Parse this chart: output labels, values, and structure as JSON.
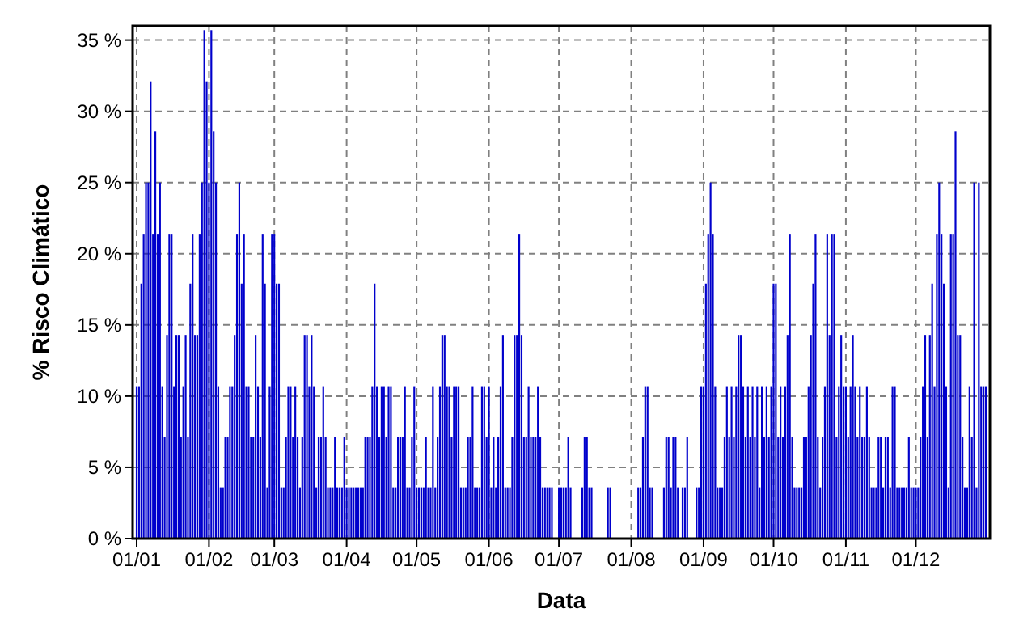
{
  "chart_data": {
    "type": "bar",
    "xlabel": "Data",
    "ylabel": "% Risco Climático",
    "color": "#0000cc",
    "grid": true,
    "xlim": [
      "--01-01",
      "--12-31"
    ],
    "xticks": [
      {
        "value": "--01-01",
        "label": "01/01"
      },
      {
        "value": "--02-01",
        "label": "01/02"
      },
      {
        "value": "--03-01",
        "label": "01/03"
      },
      {
        "value": "--04-01",
        "label": "01/04"
      },
      {
        "value": "--05-01",
        "label": "01/05"
      },
      {
        "value": "--06-01",
        "label": "01/06"
      },
      {
        "value": "--07-01",
        "label": "01/07"
      },
      {
        "value": "--08-01",
        "label": "01/08"
      },
      {
        "value": "--09-01",
        "label": "01/09"
      },
      {
        "value": "--10-01",
        "label": "01/10"
      },
      {
        "value": "--11-01",
        "label": "01/11"
      },
      {
        "value": "--12-01",
        "label": "01/12"
      }
    ],
    "ylim": [
      0,
      36
    ],
    "yticks": [
      {
        "value": 0,
        "label": "0 %"
      },
      {
        "value": 5,
        "label": "5 %"
      },
      {
        "value": 10,
        "label": "10 %"
      },
      {
        "value": 15,
        "label": "15 %"
      },
      {
        "value": 20,
        "label": "20 %"
      },
      {
        "value": 25,
        "label": "25 %"
      },
      {
        "value": 30,
        "label": "30 %"
      },
      {
        "value": 35,
        "label": "35 %"
      }
    ],
    "x": [
      "--01-01",
      "--01-02",
      "--01-03",
      "--01-04",
      "--01-05",
      "--01-06",
      "--01-07",
      "--01-08",
      "--01-09",
      "--01-10",
      "--01-11",
      "--01-12",
      "--01-13",
      "--01-14",
      "--01-15",
      "--01-16",
      "--01-17",
      "--01-18",
      "--01-19",
      "--01-20",
      "--01-21",
      "--01-22",
      "--01-23",
      "--01-24",
      "--01-25",
      "--01-26",
      "--01-27",
      "--01-28",
      "--01-29",
      "--01-30",
      "--01-31",
      "--02-01",
      "--02-02",
      "--02-03",
      "--02-04",
      "--02-05",
      "--02-06",
      "--02-07",
      "--02-08",
      "--02-09",
      "--02-10",
      "--02-11",
      "--02-12",
      "--02-13",
      "--02-14",
      "--02-15",
      "--02-16",
      "--02-17",
      "--02-18",
      "--02-19",
      "--02-20",
      "--02-21",
      "--02-22",
      "--02-23",
      "--02-24",
      "--02-25",
      "--02-26",
      "--02-27",
      "--02-28",
      "--03-01",
      "--03-02",
      "--03-03",
      "--03-04",
      "--03-05",
      "--03-06",
      "--03-07",
      "--03-08",
      "--03-09",
      "--03-10",
      "--03-11",
      "--03-12",
      "--03-13",
      "--03-14",
      "--03-15",
      "--03-16",
      "--03-17",
      "--03-18",
      "--03-19",
      "--03-20",
      "--03-21",
      "--03-22",
      "--03-23",
      "--03-24",
      "--03-25",
      "--03-26",
      "--03-27",
      "--03-28",
      "--03-29",
      "--03-30",
      "--03-31",
      "--04-01",
      "--04-02",
      "--04-03",
      "--04-04",
      "--04-05",
      "--04-06",
      "--04-07",
      "--04-08",
      "--04-09",
      "--04-10",
      "--04-11",
      "--04-12",
      "--04-13",
      "--04-14",
      "--04-15",
      "--04-16",
      "--04-17",
      "--04-18",
      "--04-19",
      "--04-20",
      "--04-21",
      "--04-22",
      "--04-23",
      "--04-24",
      "--04-25",
      "--04-26",
      "--04-27",
      "--04-28",
      "--04-29",
      "--04-30",
      "--05-01",
      "--05-02",
      "--05-03",
      "--05-04",
      "--05-05",
      "--05-06",
      "--05-07",
      "--05-08",
      "--05-09",
      "--05-10",
      "--05-11",
      "--05-12",
      "--05-13",
      "--05-14",
      "--05-15",
      "--05-16",
      "--05-17",
      "--05-18",
      "--05-19",
      "--05-20",
      "--05-21",
      "--05-22",
      "--05-23",
      "--05-24",
      "--05-25",
      "--05-26",
      "--05-27",
      "--05-28",
      "--05-29",
      "--05-30",
      "--05-31",
      "--06-01",
      "--06-02",
      "--06-03",
      "--06-04",
      "--06-05",
      "--06-06",
      "--06-07",
      "--06-08",
      "--06-09",
      "--06-10",
      "--06-11",
      "--06-12",
      "--06-13",
      "--06-14",
      "--06-15",
      "--06-16",
      "--06-17",
      "--06-18",
      "--06-19",
      "--06-20",
      "--06-21",
      "--06-22",
      "--06-23",
      "--06-24",
      "--06-25",
      "--06-26",
      "--06-27",
      "--06-28",
      "--06-29",
      "--06-30",
      "--07-01",
      "--07-02",
      "--07-03",
      "--07-04",
      "--07-05",
      "--07-06",
      "--07-07",
      "--07-08",
      "--07-09",
      "--07-10",
      "--07-11",
      "--07-12",
      "--07-13",
      "--07-14",
      "--07-15",
      "--07-16",
      "--07-17",
      "--07-18",
      "--07-19",
      "--07-20",
      "--07-21",
      "--07-22",
      "--07-23",
      "--07-24",
      "--07-25",
      "--07-26",
      "--07-27",
      "--07-28",
      "--07-29",
      "--07-30",
      "--07-31",
      "--08-01",
      "--08-02",
      "--08-03",
      "--08-04",
      "--08-05",
      "--08-06",
      "--08-07",
      "--08-08",
      "--08-09",
      "--08-10",
      "--08-11",
      "--08-12",
      "--08-13",
      "--08-14",
      "--08-15",
      "--08-16",
      "--08-17",
      "--08-18",
      "--08-19",
      "--08-20",
      "--08-21",
      "--08-22",
      "--08-23",
      "--08-24",
      "--08-25",
      "--08-26",
      "--08-27",
      "--08-28",
      "--08-29",
      "--08-30",
      "--08-31",
      "--09-01",
      "--09-02",
      "--09-03",
      "--09-04",
      "--09-05",
      "--09-06",
      "--09-07",
      "--09-08",
      "--09-09",
      "--09-10",
      "--09-11",
      "--09-12",
      "--09-13",
      "--09-14",
      "--09-15",
      "--09-16",
      "--09-17",
      "--09-18",
      "--09-19",
      "--09-20",
      "--09-21",
      "--09-22",
      "--09-23",
      "--09-24",
      "--09-25",
      "--09-26",
      "--09-27",
      "--09-28",
      "--09-29",
      "--09-30",
      "--10-01",
      "--10-02",
      "--10-03",
      "--10-04",
      "--10-05",
      "--10-06",
      "--10-07",
      "--10-08",
      "--10-09",
      "--10-10",
      "--10-11",
      "--10-12",
      "--10-13",
      "--10-14",
      "--10-15",
      "--10-16",
      "--10-17",
      "--10-18",
      "--10-19",
      "--10-20",
      "--10-21",
      "--10-22",
      "--10-23",
      "--10-24",
      "--10-25",
      "--10-26",
      "--10-27",
      "--10-28",
      "--10-29",
      "--10-30",
      "--10-31",
      "--11-01",
      "--11-02",
      "--11-03",
      "--11-04",
      "--11-05",
      "--11-06",
      "--11-07",
      "--11-08",
      "--11-09",
      "--11-10",
      "--11-11",
      "--11-12",
      "--11-13",
      "--11-14",
      "--11-15",
      "--11-16",
      "--11-17",
      "--11-18",
      "--11-19",
      "--11-20",
      "--11-21",
      "--11-22",
      "--11-23",
      "--11-24",
      "--11-25",
      "--11-26",
      "--11-27",
      "--11-28",
      "--11-29",
      "--11-30",
      "--12-01",
      "--12-02",
      "--12-03",
      "--12-04",
      "--12-05",
      "--12-06",
      "--12-07",
      "--12-08",
      "--12-09",
      "--12-10",
      "--12-11",
      "--12-12",
      "--12-13",
      "--12-14",
      "--12-15",
      "--12-16",
      "--12-17",
      "--12-18",
      "--12-19",
      "--12-20",
      "--12-21",
      "--12-22",
      "--12-23",
      "--12-24",
      "--12-25",
      "--12-26",
      "--12-27",
      "--12-28",
      "--12-29",
      "--12-30",
      "--12-31"
    ],
    "values": [
      10.7,
      10.7,
      17.9,
      21.4,
      25,
      25,
      32.1,
      21.4,
      28.6,
      21.4,
      25,
      10.7,
      7.1,
      14.3,
      21.4,
      21.4,
      10.7,
      14.3,
      14.3,
      7.1,
      10.7,
      14.3,
      7.1,
      17.9,
      21.4,
      14.3,
      14.3,
      21.4,
      25,
      35.7,
      32.1,
      25,
      35.7,
      28.6,
      25,
      10.7,
      3.6,
      3.6,
      7.1,
      7.1,
      10.7,
      10.7,
      14.3,
      21.4,
      25,
      17.9,
      21.4,
      10.7,
      10.7,
      7.1,
      7.1,
      14.3,
      10.7,
      7.1,
      21.4,
      17.9,
      3.6,
      10.7,
      21.4,
      21.4,
      17.9,
      17.9,
      3.6,
      3.6,
      7.1,
      10.7,
      10.7,
      7.1,
      10.7,
      7.1,
      3.6,
      7.1,
      14.3,
      14.3,
      10.7,
      14.3,
      10.7,
      3.6,
      7.1,
      7.1,
      10.7,
      7.1,
      3.6,
      3.6,
      3.6,
      7.1,
      3.6,
      3.6,
      3.6,
      7.1,
      3.6,
      3.6,
      3.6,
      3.6,
      3.6,
      3.6,
      3.6,
      3.6,
      7.1,
      7.1,
      7.1,
      10.7,
      17.9,
      10.7,
      7.1,
      10.7,
      10.7,
      7.1,
      10.7,
      10.7,
      3.6,
      3.6,
      7.1,
      7.1,
      7.1,
      10.7,
      3.6,
      3.6,
      7.1,
      10.7,
      3.6,
      3.6,
      3.6,
      3.6,
      7.1,
      3.6,
      3.6,
      10.7,
      3.6,
      7.1,
      10.7,
      14.3,
      14.3,
      10.7,
      10.7,
      7.1,
      10.7,
      10.7,
      10.7,
      3.6,
      3.6,
      3.6,
      7.1,
      7.1,
      10.7,
      3.6,
      3.6,
      3.6,
      10.7,
      10.7,
      7.1,
      10.7,
      3.6,
      7.1,
      3.6,
      7.1,
      10.7,
      14.3,
      3.6,
      3.6,
      3.6,
      7.1,
      14.3,
      14.3,
      21.4,
      14.3,
      7.1,
      7.1,
      10.7,
      7.1,
      7.1,
      7.1,
      10.7,
      7.1,
      3.6,
      3.6,
      3.6,
      3.6,
      3.6,
      0,
      0,
      3.6,
      3.6,
      3.6,
      3.6,
      7.1,
      3.6,
      0,
      0,
      0,
      0,
      3.6,
      7.1,
      7.1,
      3.6,
      3.6,
      0,
      0,
      0,
      0,
      0,
      0,
      3.6,
      3.6,
      0,
      0,
      0,
      0,
      0,
      0,
      0,
      0,
      0,
      0,
      0,
      3.6,
      3.6,
      7.1,
      10.7,
      10.7,
      3.6,
      3.6,
      0,
      0,
      0,
      0,
      3.6,
      7.1,
      7.1,
      3.6,
      7.1,
      7.1,
      3.6,
      0,
      3.6,
      3.6,
      7.1,
      0,
      0,
      0,
      3.6,
      3.6,
      10.7,
      10.7,
      17.9,
      21.4,
      25,
      21.4,
      10.7,
      3.6,
      3.6,
      3.6,
      7.1,
      10.7,
      7.1,
      10.7,
      7.1,
      10.7,
      14.3,
      14.3,
      10.7,
      7.1,
      10.7,
      7.1,
      10.7,
      7.1,
      10.7,
      3.6,
      10.7,
      7.1,
      10.7,
      7.1,
      10.7,
      17.9,
      17.9,
      7.1,
      10.7,
      7.1,
      10.7,
      14.3,
      21.4,
      7.1,
      3.6,
      3.6,
      3.6,
      3.6,
      7.1,
      7.1,
      10.7,
      14.3,
      17.9,
      21.4,
      7.1,
      3.6,
      7.1,
      10.7,
      21.4,
      14.3,
      21.4,
      21.4,
      7.1,
      10.7,
      14.3,
      10.7,
      10.7,
      7.1,
      10.7,
      14.3,
      10.7,
      7.1,
      10.7,
      7.1,
      7.1,
      10.7,
      7.1,
      3.6,
      3.6,
      3.6,
      7.1,
      7.1,
      3.6,
      7.1,
      7.1,
      3.6,
      10.7,
      10.7,
      3.6,
      3.6,
      3.6,
      3.6,
      3.6,
      7.1,
      3.6,
      3.6,
      3.6,
      3.6,
      7.1,
      10.7,
      14.3,
      7.1,
      14.3,
      17.9,
      10.7,
      21.4,
      25,
      21.4,
      17.9,
      10.7,
      3.6,
      21.4,
      21.4,
      28.6,
      14.3,
      14.3,
      7.1,
      3.6,
      3.6,
      10.7,
      7.1,
      25,
      3.6,
      25,
      10.7,
      10.7,
      10.7
    ]
  }
}
